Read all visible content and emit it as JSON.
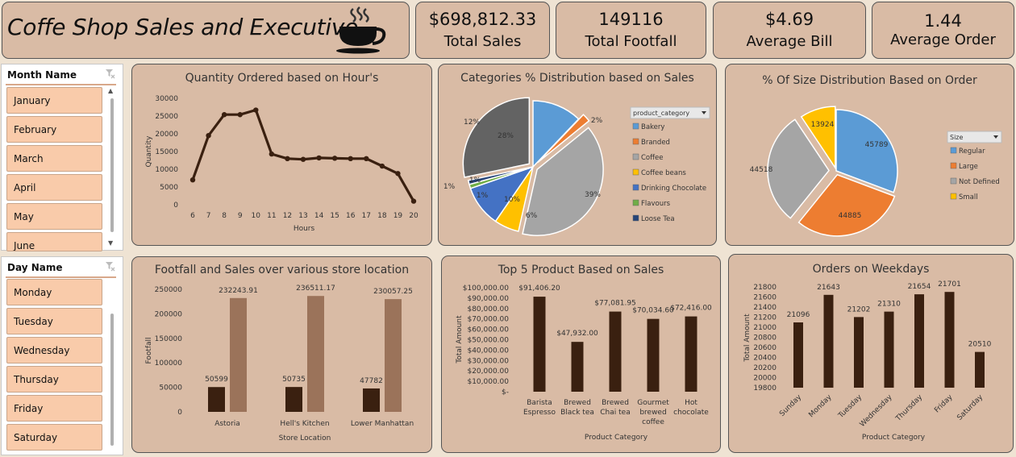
{
  "header": {
    "title": "Coffe Shop Sales and Executive",
    "cup_icon": "coffee-cup-icon"
  },
  "kpis": [
    {
      "value": "$698,812.33",
      "label": "Total Sales"
    },
    {
      "value": "149116",
      "label": "Total Footfall"
    },
    {
      "value": "$4.69",
      "label": "Average Bill"
    },
    {
      "value": "1.44",
      "label": "Average Order"
    }
  ],
  "slicers": {
    "month": {
      "header": "Month Name",
      "items": [
        "January",
        "February",
        "March",
        "April",
        "May",
        "June"
      ]
    },
    "day": {
      "header": "Day Name",
      "items": [
        "Monday",
        "Tuesday",
        "Wednesday",
        "Thursday",
        "Friday",
        "Saturday"
      ]
    }
  },
  "colors": {
    "dark_brown": "#3a2010",
    "light_brown": "#9b735a",
    "panel": "#d9bba5",
    "slicer_item": "#f9cbaa"
  },
  "chart_data": [
    {
      "type": "line",
      "title": "Quantity Ordered based on Hour's",
      "xlabel": "Hours",
      "ylabel": "Quantity",
      "x": [
        6,
        7,
        8,
        9,
        10,
        11,
        12,
        13,
        14,
        15,
        16,
        17,
        18,
        19,
        20
      ],
      "values": [
        7000,
        19500,
        25400,
        25400,
        26700,
        14300,
        13000,
        12800,
        13200,
        13100,
        13000,
        13000,
        10900,
        8800,
        1000
      ],
      "ylim": [
        0,
        30000
      ],
      "yticks": [
        "0",
        "5000",
        "10000",
        "15000",
        "20000",
        "25000",
        "30000"
      ],
      "grid": false
    },
    {
      "type": "pie",
      "title": "Categories % Distribution based on Sales",
      "legend_title": "product_category",
      "legend_position": "right",
      "categories": [
        "Bakery",
        "Branded",
        "Coffee",
        "Coffee beans",
        "Drinking Chocolate",
        "Flavours",
        "Loose Tea"
      ],
      "values": [
        12,
        2,
        39,
        6,
        10,
        1,
        1
      ],
      "labels": [
        "12%",
        "2%",
        "39%",
        "6%",
        "10%",
        "1%",
        "1%"
      ],
      "extra_slice": {
        "value": 28,
        "label": "28%"
      },
      "extra_label": "1%",
      "colors": [
        "#5b9bd5",
        "#ed7d31",
        "#a5a5a5",
        "#ffc000",
        "#4472c4",
        "#70ad47",
        "#264478",
        "#636363"
      ]
    },
    {
      "type": "pie",
      "title": "% Of Size Distribution Based on Order",
      "legend_title": "Size",
      "legend_position": "right",
      "categories": [
        "Regular",
        "Large",
        "Not Defined",
        "Small"
      ],
      "values": [
        45789,
        44885,
        44518,
        13924
      ],
      "labels": [
        "45789",
        "44885",
        "44518",
        "13924"
      ],
      "colors": [
        "#5b9bd5",
        "#ed7d31",
        "#a5a5a5",
        "#ffc000"
      ]
    },
    {
      "type": "bar",
      "title": "Footfall and Sales over various store location",
      "xlabel": "Store Location",
      "ylabel": "Footfall",
      "categories": [
        "Astoria",
        "Hell's Kitchen",
        "Lower Manhattan"
      ],
      "series": [
        {
          "values": [
            50599,
            50735,
            47782
          ],
          "labels": [
            "50599",
            "50735",
            "47782"
          ],
          "color": "#3a2010"
        },
        {
          "values": [
            232243.91,
            236511.17,
            230057.25
          ],
          "labels": [
            "232243.91",
            "236511.17",
            "230057.25"
          ],
          "color": "#9b735a"
        }
      ],
      "ylim": [
        0,
        250000
      ],
      "yticks": [
        "0",
        "50000",
        "100000",
        "150000",
        "200000",
        "250000"
      ]
    },
    {
      "type": "bar",
      "title": "Top 5 Product Based on Sales",
      "xlabel": "Product Category",
      "ylabel": "Total Amount",
      "categories": [
        [
          "Barista",
          "Espresso"
        ],
        [
          "Brewed",
          "Black tea"
        ],
        [
          "Brewed",
          "Chai tea"
        ],
        [
          "Gourmet",
          "brewed",
          "coffee"
        ],
        [
          "Hot",
          "chocolate"
        ]
      ],
      "values": [
        91406.2,
        47932,
        77081.95,
        70034.6,
        72416
      ],
      "labels": [
        "$91,406.20",
        "$47,932.00",
        "$77,081.95",
        "$70,034.60",
        "$72,416.00"
      ],
      "ylim": [
        0,
        100000
      ],
      "yticks": [
        "$-",
        "$10,000.00",
        "$20,000.00",
        "$30,000.00",
        "$40,000.00",
        "$50,000.00",
        "$60,000.00",
        "$70,000.00",
        "$80,000.00",
        "$90,000.00",
        "$100,000.00"
      ]
    },
    {
      "type": "bar",
      "title": "Orders on Weekdays",
      "xlabel": "Product Category",
      "ylabel": "Total Amount",
      "categories": [
        "Sunday",
        "Monday",
        "Tuesday",
        "Wednesday",
        "Thursday",
        "Friday",
        "Saturday"
      ],
      "values": [
        21096,
        21643,
        21202,
        21310,
        21654,
        21701,
        20510
      ],
      "labels": [
        "21096",
        "21643",
        "21202",
        "21310",
        "21654",
        "21701",
        "20510"
      ],
      "ylim": [
        19800,
        21800
      ],
      "yticks": [
        "19800",
        "20000",
        "20200",
        "20400",
        "20600",
        "20800",
        "21000",
        "21200",
        "21400",
        "21600",
        "21800"
      ]
    }
  ]
}
